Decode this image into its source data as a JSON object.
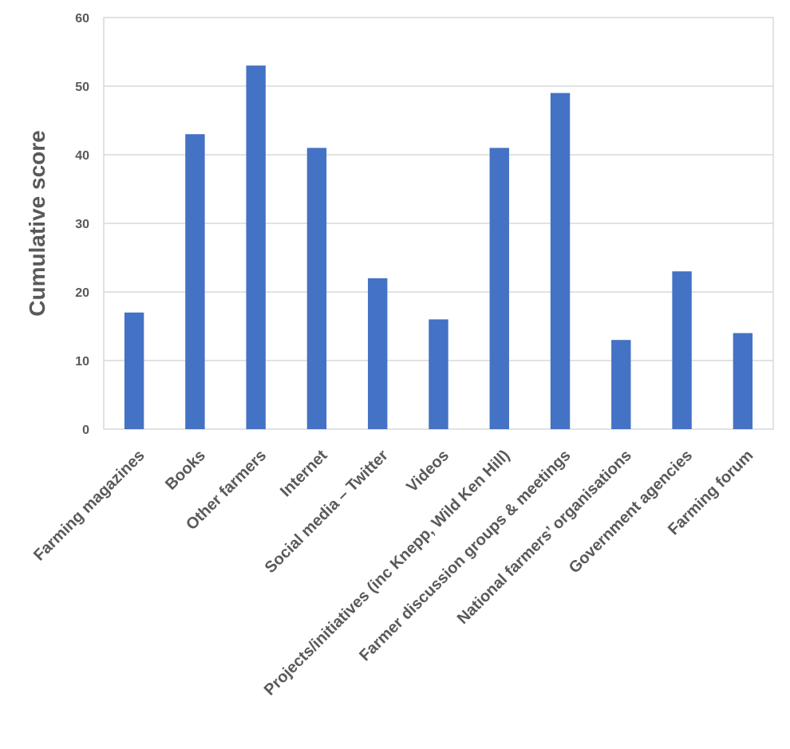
{
  "chart_data": {
    "type": "bar",
    "title": "",
    "xlabel": "",
    "ylabel": "Cumulative score",
    "ylim": [
      0,
      60
    ],
    "yticks": [
      0,
      10,
      20,
      30,
      40,
      50,
      60
    ],
    "grid": true,
    "legend": "none",
    "bar_color": "#4472C4",
    "categories": [
      "Farming magazines",
      "Books",
      "Other farmers",
      "Internet",
      "Social media – Twitter",
      "Videos",
      "Projects/initiatives (inc Knepp, Wild Ken Hill)",
      "Farmer discussion groups & meetings",
      "National farmers’ organisations",
      "Government agencies",
      "Farming forum"
    ],
    "values": [
      17,
      43,
      53,
      41,
      22,
      16,
      41,
      49,
      13,
      23,
      14
    ]
  }
}
